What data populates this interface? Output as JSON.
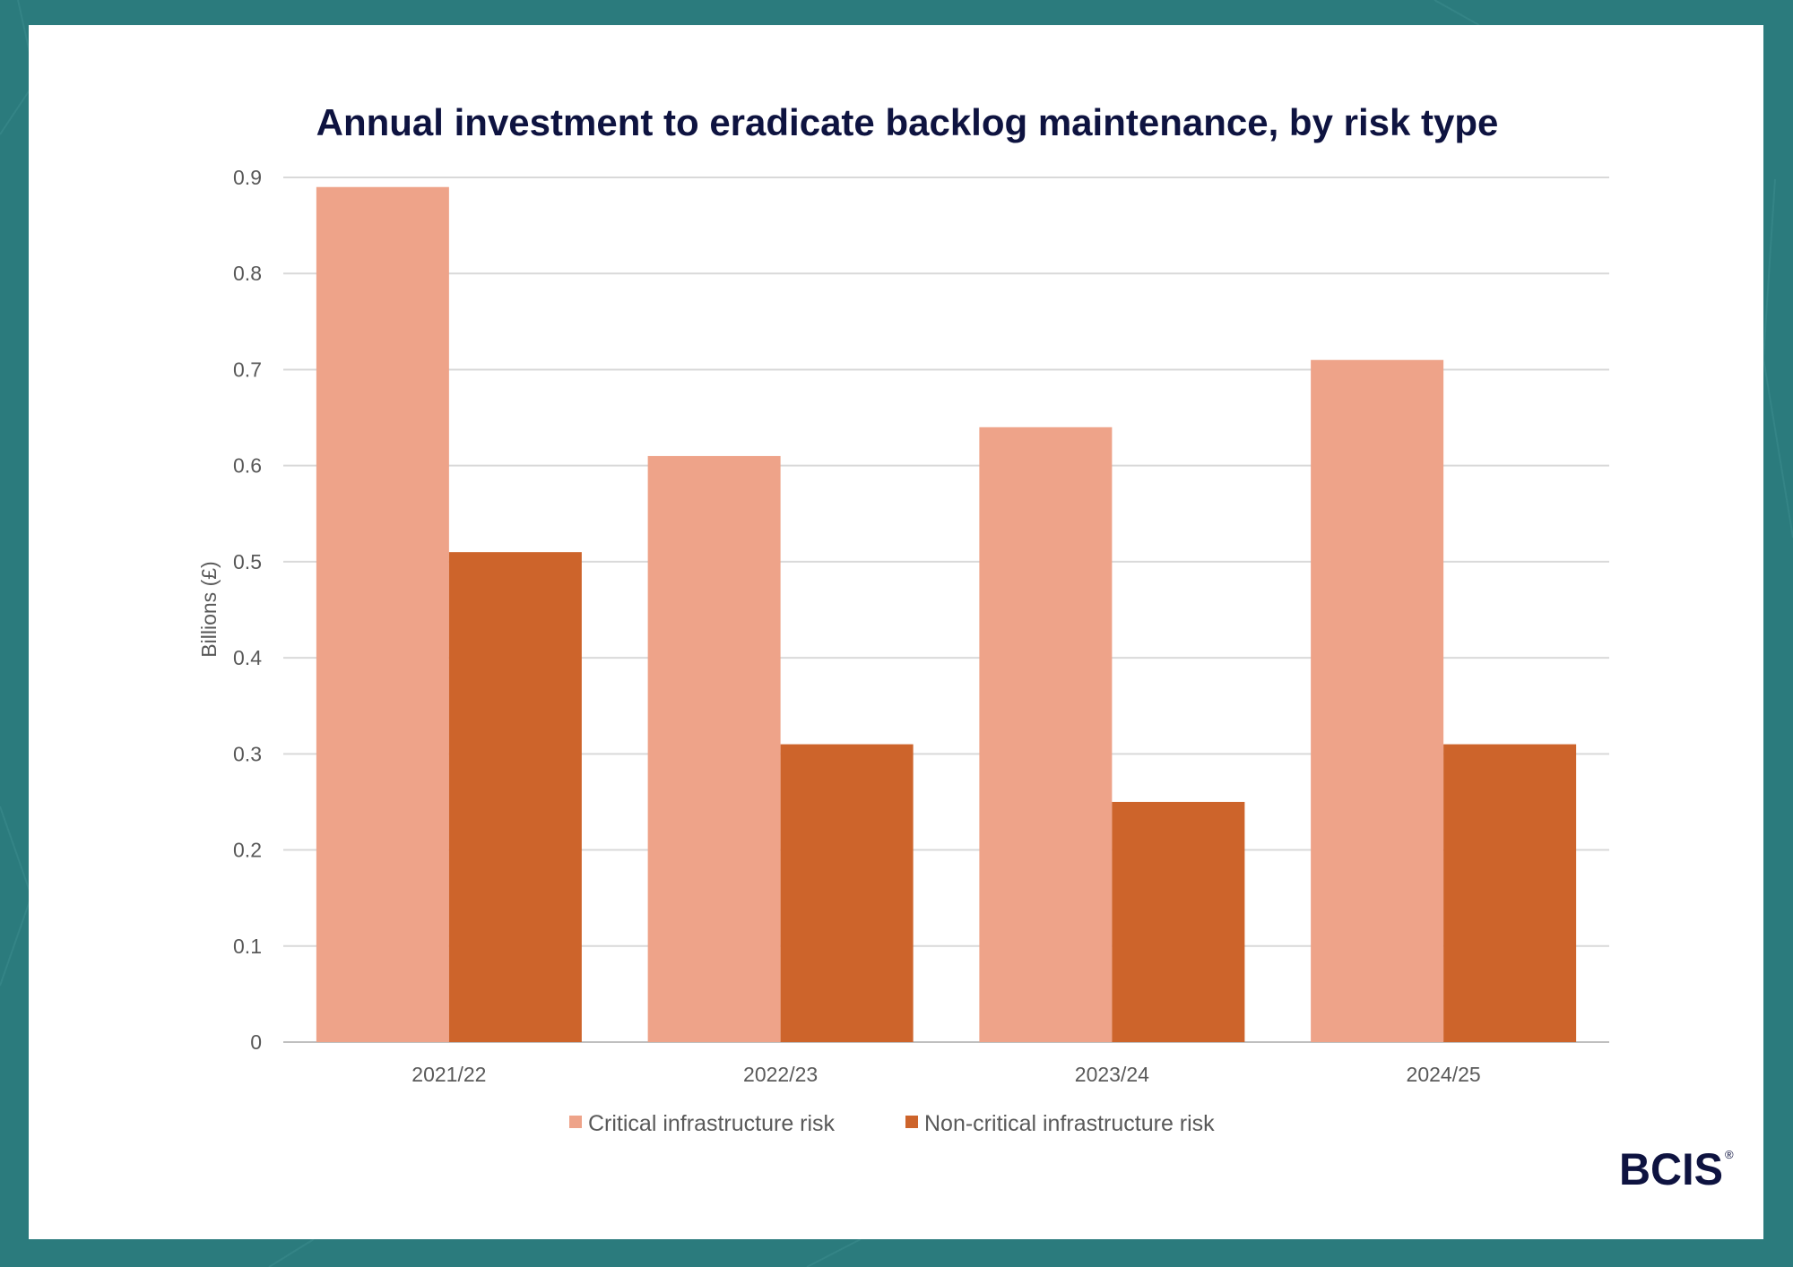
{
  "chart_data": {
    "type": "bar",
    "title": "Annual investment to eradicate backlog maintenance, by risk type",
    "xlabel": "",
    "ylabel": "Billions (£)",
    "ylim": [
      0,
      0.9
    ],
    "yticks": [
      "0",
      "0.1",
      "0.2",
      "0.3",
      "0.4",
      "0.5",
      "0.6",
      "0.7",
      "0.8",
      "0.9"
    ],
    "grid": true,
    "legend_position": "bottom",
    "categories": [
      "2021/22",
      "2022/23",
      "2023/24",
      "2024/25"
    ],
    "series": [
      {
        "name": "Critical infrastructure risk",
        "color": "#EEA389",
        "values": [
          0.89,
          0.61,
          0.64,
          0.71
        ]
      },
      {
        "name": "Non-critical infrastructure risk",
        "color": "#CD642B",
        "values": [
          0.51,
          0.31,
          0.25,
          0.31
        ]
      }
    ]
  },
  "logo": {
    "text": "BCIS",
    "mark": "®"
  }
}
